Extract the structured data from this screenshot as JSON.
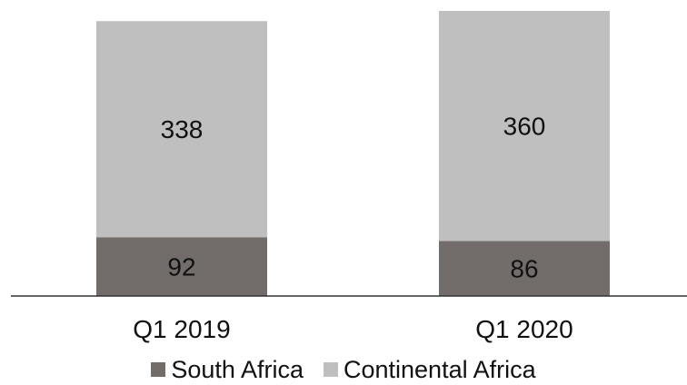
{
  "chart_data": {
    "type": "bar",
    "stacked": true,
    "categories": [
      "Q1 2019",
      "Q1 2020"
    ],
    "series": [
      {
        "name": "South Africa",
        "values": [
          92,
          86
        ],
        "color": "#726d6b"
      },
      {
        "name": "Continental Africa",
        "values": [
          338,
          360
        ],
        "color": "#bfbfbf"
      }
    ],
    "title": "",
    "xlabel": "",
    "ylabel": "",
    "ylim": [
      0,
      446
    ],
    "grid": false,
    "data_labels": true,
    "legend_position": "bottom"
  }
}
